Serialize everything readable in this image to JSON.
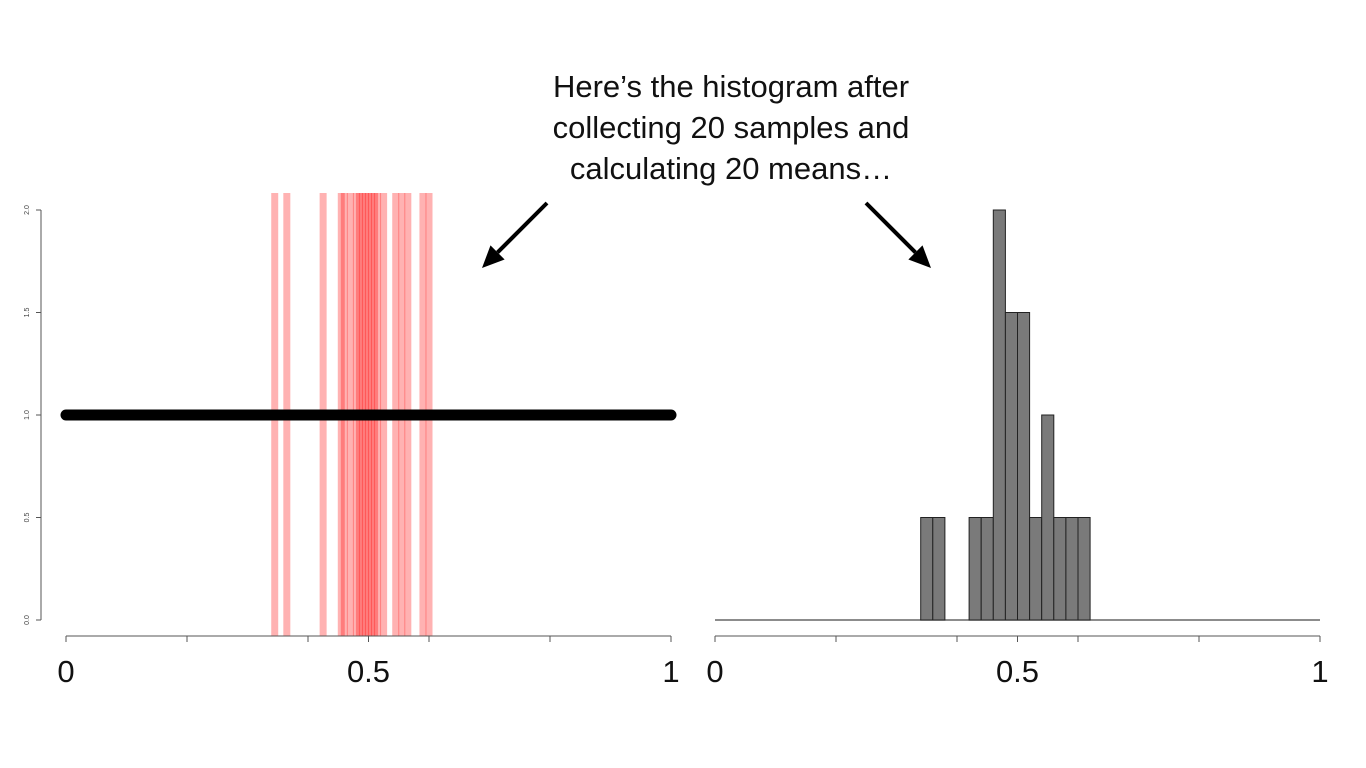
{
  "annotation": {
    "lines": [
      "Here’s the histogram after",
      "collecting 20 samples and",
      "calculating 20 means…"
    ]
  },
  "colors": {
    "background": "#ffffff",
    "density_line": "#000000",
    "sample_lines": "#ff0000",
    "histogram_bars": "#7a7a7a",
    "axis": "#555555",
    "arrow": "#000000"
  },
  "chart_data": [
    {
      "type": "line",
      "title": "",
      "xlabel": "",
      "ylabel": "",
      "xlim": [
        0,
        1
      ],
      "ylim": [
        0,
        2
      ],
      "x_ticks": [
        0,
        0.2,
        0.4,
        0.5,
        0.6,
        0.8,
        1
      ],
      "x_tick_labels": [
        {
          "value": 0,
          "label": "0"
        },
        {
          "value": 0.5,
          "label": "0.5"
        },
        {
          "value": 1,
          "label": "1"
        }
      ],
      "y_tick_labels": [
        {
          "value": 0,
          "label": "0.0"
        },
        {
          "value": 0.5,
          "label": "0.5"
        },
        {
          "value": 1,
          "label": "1.0"
        },
        {
          "value": 1.5,
          "label": "1.5"
        },
        {
          "value": 2,
          "label": "2.0"
        }
      ],
      "series": [
        {
          "x": [
            0,
            1
          ],
          "y": [
            1,
            1
          ]
        }
      ],
      "vertical_lines_x": [
        0.345,
        0.365,
        0.425,
        0.455,
        0.47,
        0.48,
        0.485,
        0.49,
        0.495,
        0.5,
        0.505,
        0.51,
        0.515,
        0.525,
        0.545,
        0.555,
        0.565,
        0.59,
        0.6,
        0.46
      ],
      "grid": false,
      "legend": "none"
    },
    {
      "type": "bar",
      "title": "",
      "xlabel": "",
      "ylabel": "",
      "xlim": [
        0,
        1
      ],
      "ylim": [
        0,
        2
      ],
      "x_ticks": [
        0,
        0.2,
        0.4,
        0.5,
        0.6,
        0.8,
        1
      ],
      "x_tick_labels": [
        {
          "value": 0,
          "label": "0"
        },
        {
          "value": 0.5,
          "label": "0.5"
        },
        {
          "value": 1,
          "label": "1"
        }
      ],
      "bin_width": 0.02,
      "bins": [
        {
          "start": 0.34,
          "value": 0.5
        },
        {
          "start": 0.36,
          "value": 0.5
        },
        {
          "start": 0.42,
          "value": 0.5
        },
        {
          "start": 0.44,
          "value": 0.5
        },
        {
          "start": 0.46,
          "value": 2.0
        },
        {
          "start": 0.48,
          "value": 1.5
        },
        {
          "start": 0.5,
          "value": 1.5
        },
        {
          "start": 0.52,
          "value": 0.5
        },
        {
          "start": 0.54,
          "value": 1.0
        },
        {
          "start": 0.56,
          "value": 0.5
        },
        {
          "start": 0.58,
          "value": 0.5
        },
        {
          "start": 0.6,
          "value": 0.5
        }
      ],
      "grid": false,
      "legend": "none"
    }
  ]
}
